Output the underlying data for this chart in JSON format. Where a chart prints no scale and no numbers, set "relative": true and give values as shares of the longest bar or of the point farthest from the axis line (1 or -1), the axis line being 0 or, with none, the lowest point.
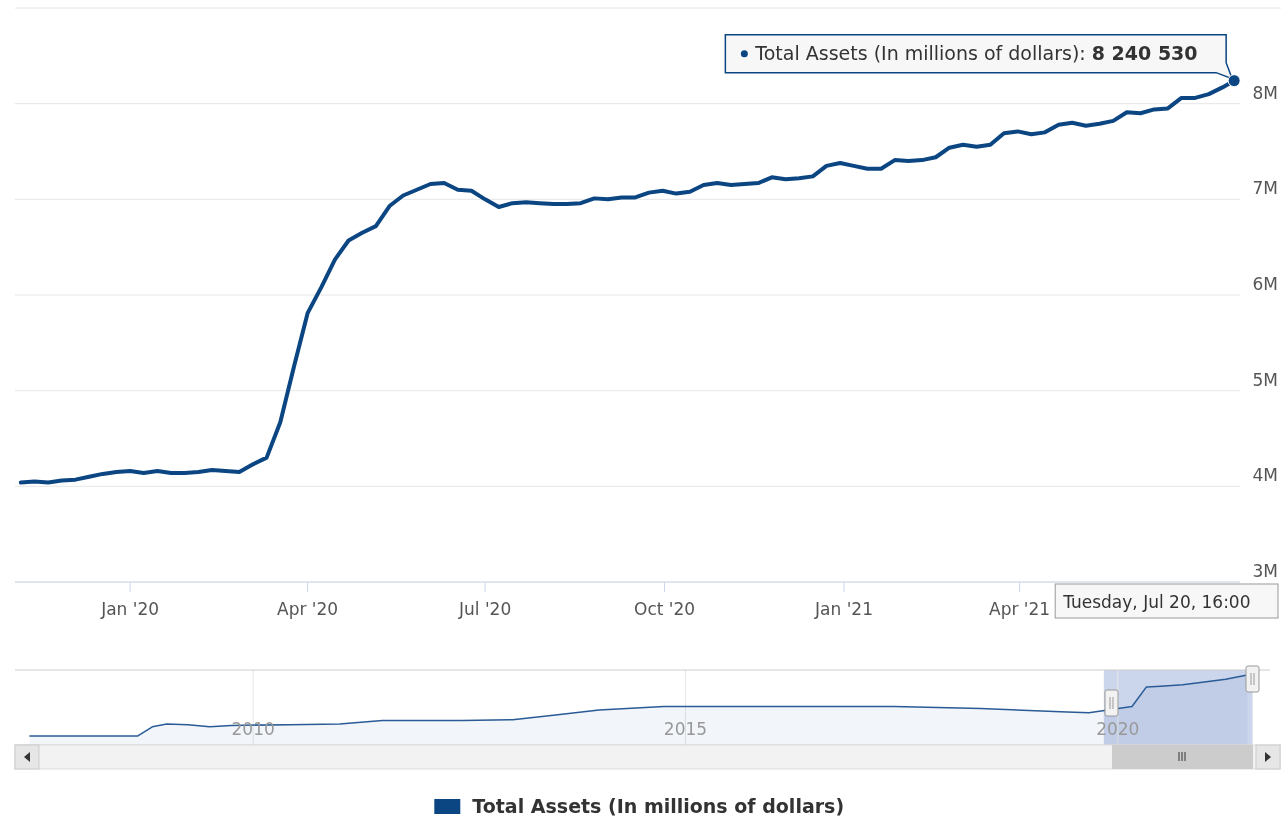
{
  "chart_data": [
    {
      "type": "line",
      "x": [
        "2019-11-06",
        "2019-11-13",
        "2019-11-20",
        "2019-11-27",
        "2019-12-04",
        "2019-12-11",
        "2019-12-18",
        "2019-12-25",
        "2020-01-01",
        "2020-01-08",
        "2020-01-15",
        "2020-01-22",
        "2020-01-29",
        "2020-02-05",
        "2020-02-12",
        "2020-02-19",
        "2020-02-26",
        "2020-03-04",
        "2020-03-11",
        "2020-03-18",
        "2020-03-25",
        "2020-04-01",
        "2020-04-08",
        "2020-04-15",
        "2020-04-22",
        "2020-04-29",
        "2020-05-06",
        "2020-05-13",
        "2020-05-20",
        "2020-05-27",
        "2020-06-03",
        "2020-06-10",
        "2020-06-17",
        "2020-06-24",
        "2020-07-01",
        "2020-07-08",
        "2020-07-15",
        "2020-07-22",
        "2020-07-29",
        "2020-08-05",
        "2020-08-12",
        "2020-08-19",
        "2020-08-26",
        "2020-09-02",
        "2020-09-09",
        "2020-09-16",
        "2020-09-23",
        "2020-09-30",
        "2020-10-07",
        "2020-10-14",
        "2020-10-21",
        "2020-10-28",
        "2020-11-04",
        "2020-11-11",
        "2020-11-18",
        "2020-11-25",
        "2020-12-02",
        "2020-12-09",
        "2020-12-16",
        "2020-12-23",
        "2020-12-30",
        "2021-01-06",
        "2021-01-13",
        "2021-01-20",
        "2021-01-27",
        "2021-02-03",
        "2021-02-10",
        "2021-02-17",
        "2021-02-24",
        "2021-03-03",
        "2021-03-10",
        "2021-03-17",
        "2021-03-24",
        "2021-03-31",
        "2021-04-07",
        "2021-04-14",
        "2021-04-21",
        "2021-04-28",
        "2021-05-05",
        "2021-05-12",
        "2021-05-19",
        "2021-05-26",
        "2021-06-02",
        "2021-06-09",
        "2021-06-16",
        "2021-06-23",
        "2021-06-30",
        "2021-07-07",
        "2021-07-14",
        "2021-07-20"
      ],
      "series": [
        {
          "name": "Total Assets (In millions of dollars)",
          "color": "#0b4682",
          "values": [
            4040000,
            4050000,
            4040000,
            4060000,
            4070000,
            4100000,
            4130000,
            4150000,
            4160000,
            4140000,
            4160000,
            4140000,
            4140000,
            4150000,
            4170000,
            4160000,
            4150000,
            4230000,
            4300000,
            4670000,
            5250000,
            5810000,
            6080000,
            6370000,
            6570000,
            6650000,
            6720000,
            6930000,
            7040000,
            7100000,
            7160000,
            7170000,
            7100000,
            7090000,
            7000000,
            6920000,
            6960000,
            6970000,
            6960000,
            6950000,
            6950000,
            6960000,
            7010000,
            7000000,
            7020000,
            7020000,
            7070000,
            7090000,
            7060000,
            7080000,
            7150000,
            7170000,
            7150000,
            7160000,
            7170000,
            7230000,
            7210000,
            7220000,
            7240000,
            7350000,
            7380000,
            7350000,
            7320000,
            7320000,
            7410000,
            7400000,
            7410000,
            7440000,
            7540000,
            7570000,
            7550000,
            7570000,
            7690000,
            7710000,
            7680000,
            7700000,
            7780000,
            7800000,
            7770000,
            7790000,
            7820000,
            7910000,
            7900000,
            7940000,
            7950000,
            8060000,
            8060000,
            8100000,
            8170000,
            8240530
          ]
        }
      ],
      "xlim": [
        "2019-11-03",
        "2021-07-23"
      ],
      "xticks": [
        {
          "value": "2020-01-01",
          "label": "Jan '20"
        },
        {
          "value": "2020-04-01",
          "label": "Apr '20"
        },
        {
          "value": "2020-07-01",
          "label": "Jul '20"
        },
        {
          "value": "2020-10-01",
          "label": "Oct '20"
        },
        {
          "value": "2021-01-01",
          "label": "Jan '21"
        },
        {
          "value": "2021-04-01",
          "label": "Apr '21"
        }
      ],
      "ylim": [
        3000000,
        9000000
      ],
      "yticks": [
        {
          "value": 3000000,
          "label": "3M"
        },
        {
          "value": 4000000,
          "label": "4M"
        },
        {
          "value": 5000000,
          "label": "5M"
        },
        {
          "value": 6000000,
          "label": "6M"
        },
        {
          "value": 7000000,
          "label": "7M"
        },
        {
          "value": 8000000,
          "label": "8M"
        }
      ],
      "grid": "y",
      "legend": "bottom",
      "line_style": "solid",
      "annotations": [
        {
          "text": "Total Assets (In millions of dollars): 8 240 530",
          "x": "2021-07-20",
          "y": 8240530
        },
        "Tuesday, Jul 20, 16:00"
      ]
    },
    {
      "type": "area",
      "relative": true,
      "x": [
        "2007-06",
        "2008-09",
        "2008-11",
        "2009-01",
        "2009-04",
        "2009-07",
        "2009-10",
        "2010-06",
        "2011-01",
        "2011-07",
        "2012-06",
        "2013-01",
        "2013-07",
        "2014-01",
        "2014-10",
        "2015-06",
        "2017-06",
        "2018-06",
        "2019-06",
        "2019-09",
        "2020-03",
        "2020-05",
        "2020-07",
        "2020-10",
        "2021-01",
        "2021-04",
        "2021-07"
      ],
      "series": [
        {
          "color": "#2a5b96",
          "values": [
            0.13,
            0.13,
            0.26,
            0.3,
            0.29,
            0.26,
            0.28,
            0.29,
            0.3,
            0.35,
            0.35,
            0.36,
            0.43,
            0.5,
            0.55,
            0.55,
            0.55,
            0.52,
            0.47,
            0.46,
            0.55,
            0.83,
            0.84,
            0.86,
            0.9,
            0.94,
            1
          ]
        }
      ],
      "xlim": [
        "2007-04",
        "2021-07-25"
      ],
      "xticks": [
        "2010",
        "2015",
        "2020"
      ],
      "grid": "x",
      "tick_labels": "x",
      "legend": false,
      "bands": [
        {
          "axis": "x",
          "from": "2019-11-03",
          "to": "2021-07-23",
          "color": "#c5d0ea"
        }
      ]
    }
  ]
}
